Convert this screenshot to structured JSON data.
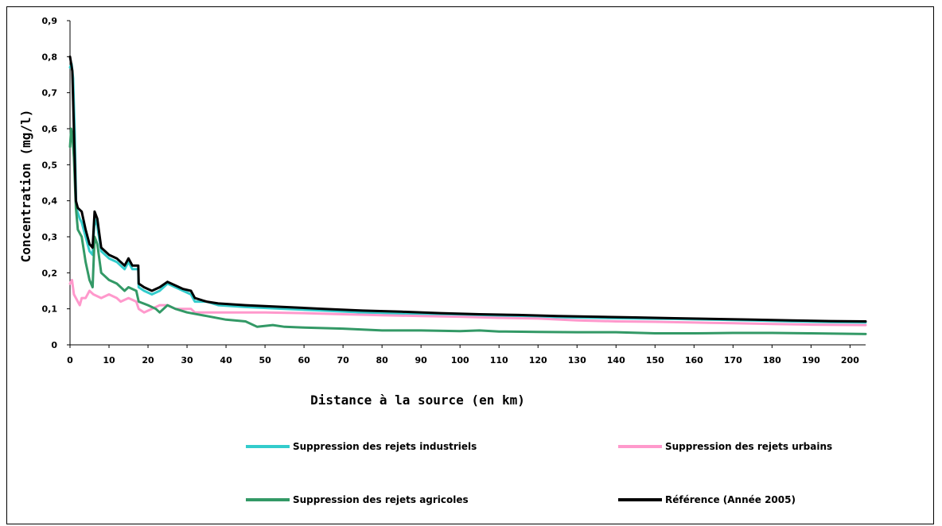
{
  "chart_data": {
    "type": "line",
    "title": "",
    "xlabel": "Distance à la source (en km)",
    "ylabel": "Concentration (mg/l)",
    "xlim": [
      0,
      204
    ],
    "ylim": [
      0,
      0.9
    ],
    "x_ticks": [
      0,
      10,
      20,
      30,
      40,
      50,
      60,
      70,
      80,
      90,
      100,
      110,
      120,
      130,
      140,
      150,
      160,
      170,
      180,
      190,
      200
    ],
    "x_tick_labels": [
      "0",
      "10",
      "20",
      "30",
      "40",
      "50",
      "60",
      "70",
      "80",
      "90",
      "100",
      "110",
      "120",
      "130",
      "140",
      "150",
      "160",
      "170",
      "180",
      "190",
      "200"
    ],
    "y_ticks": [
      0,
      0.1,
      0.2,
      0.3,
      0.4,
      0.5,
      0.6,
      0.7,
      0.8,
      0.9
    ],
    "y_tick_labels": [
      "0",
      "0,1",
      "0,2",
      "0,3",
      "0,4",
      "0,5",
      "0,6",
      "0,7",
      "0,8",
      "0,9"
    ],
    "grid": false,
    "legend_position": "bottom",
    "series": [
      {
        "name": "Suppression des rejets industriels",
        "color": "#33CCCC",
        "points": [
          [
            0,
            0.77
          ],
          [
            0.4,
            0.78
          ],
          [
            0.8,
            0.74
          ],
          [
            1.2,
            0.59
          ],
          [
            1.6,
            0.38
          ],
          [
            2.5,
            0.35
          ],
          [
            3,
            0.34
          ],
          [
            4,
            0.3
          ],
          [
            5,
            0.26
          ],
          [
            5.8,
            0.25
          ],
          [
            6.3,
            0.35
          ],
          [
            7,
            0.33
          ],
          [
            8,
            0.26
          ],
          [
            10,
            0.24
          ],
          [
            12,
            0.23
          ],
          [
            14,
            0.21
          ],
          [
            15,
            0.23
          ],
          [
            16,
            0.21
          ],
          [
            17.5,
            0.21
          ],
          [
            17.6,
            0.16
          ],
          [
            19,
            0.15
          ],
          [
            21,
            0.14
          ],
          [
            23,
            0.15
          ],
          [
            25,
            0.17
          ],
          [
            27,
            0.16
          ],
          [
            29,
            0.15
          ],
          [
            31,
            0.14
          ],
          [
            32,
            0.12
          ],
          [
            35,
            0.12
          ],
          [
            38,
            0.11
          ],
          [
            45,
            0.105
          ],
          [
            55,
            0.1
          ],
          [
            65,
            0.095
          ],
          [
            75,
            0.09
          ],
          [
            85,
            0.087
          ],
          [
            95,
            0.083
          ],
          [
            105,
            0.08
          ],
          [
            115,
            0.08
          ],
          [
            125,
            0.077
          ],
          [
            135,
            0.075
          ],
          [
            145,
            0.073
          ],
          [
            155,
            0.072
          ],
          [
            165,
            0.07
          ],
          [
            175,
            0.068
          ],
          [
            185,
            0.065
          ],
          [
            195,
            0.063
          ],
          [
            204,
            0.062
          ]
        ]
      },
      {
        "name": "Suppression des rejets urbains",
        "color": "#FF99CC",
        "points": [
          [
            0,
            0.17
          ],
          [
            0.5,
            0.18
          ],
          [
            1,
            0.14
          ],
          [
            2,
            0.12
          ],
          [
            2.5,
            0.11
          ],
          [
            3,
            0.13
          ],
          [
            4,
            0.13
          ],
          [
            5,
            0.15
          ],
          [
            6,
            0.14
          ],
          [
            8,
            0.13
          ],
          [
            10,
            0.14
          ],
          [
            12,
            0.13
          ],
          [
            13,
            0.12
          ],
          [
            15,
            0.13
          ],
          [
            17,
            0.12
          ],
          [
            17.6,
            0.1
          ],
          [
            19,
            0.09
          ],
          [
            21,
            0.1
          ],
          [
            23,
            0.11
          ],
          [
            25,
            0.11
          ],
          [
            27,
            0.1
          ],
          [
            31,
            0.1
          ],
          [
            32,
            0.09
          ],
          [
            45,
            0.09
          ],
          [
            50,
            0.09
          ],
          [
            60,
            0.088
          ],
          [
            70,
            0.085
          ],
          [
            80,
            0.082
          ],
          [
            90,
            0.08
          ],
          [
            100,
            0.078
          ],
          [
            110,
            0.075
          ],
          [
            120,
            0.073
          ],
          [
            130,
            0.068
          ],
          [
            140,
            0.065
          ],
          [
            150,
            0.064
          ],
          [
            160,
            0.062
          ],
          [
            170,
            0.06
          ],
          [
            180,
            0.058
          ],
          [
            190,
            0.056
          ],
          [
            204,
            0.055
          ]
        ]
      },
      {
        "name": "Suppression des rejets agricoles",
        "color": "#339966",
        "points": [
          [
            0,
            0.55
          ],
          [
            0.3,
            0.6
          ],
          [
            0.6,
            0.58
          ],
          [
            1,
            0.52
          ],
          [
            1.5,
            0.38
          ],
          [
            2,
            0.32
          ],
          [
            3,
            0.3
          ],
          [
            4,
            0.23
          ],
          [
            5,
            0.18
          ],
          [
            5.8,
            0.16
          ],
          [
            6.3,
            0.3
          ],
          [
            7,
            0.28
          ],
          [
            8,
            0.2
          ],
          [
            10,
            0.18
          ],
          [
            12,
            0.17
          ],
          [
            14,
            0.15
          ],
          [
            15,
            0.16
          ],
          [
            17,
            0.15
          ],
          [
            17.6,
            0.12
          ],
          [
            20,
            0.11
          ],
          [
            22,
            0.1
          ],
          [
            23,
            0.09
          ],
          [
            25,
            0.11
          ],
          [
            27,
            0.1
          ],
          [
            30,
            0.09
          ],
          [
            35,
            0.08
          ],
          [
            40,
            0.07
          ],
          [
            45,
            0.065
          ],
          [
            48,
            0.05
          ],
          [
            52,
            0.055
          ],
          [
            55,
            0.05
          ],
          [
            60,
            0.048
          ],
          [
            70,
            0.045
          ],
          [
            80,
            0.04
          ],
          [
            90,
            0.04
          ],
          [
            100,
            0.038
          ],
          [
            105,
            0.04
          ],
          [
            110,
            0.037
          ],
          [
            120,
            0.036
          ],
          [
            130,
            0.035
          ],
          [
            140,
            0.035
          ],
          [
            150,
            0.032
          ],
          [
            160,
            0.032
          ],
          [
            170,
            0.033
          ],
          [
            180,
            0.033
          ],
          [
            190,
            0.032
          ],
          [
            204,
            0.03
          ]
        ]
      },
      {
        "name": "Référence (Année 2005)",
        "color": "#000000",
        "points": [
          [
            0,
            0.8
          ],
          [
            0.3,
            0.78
          ],
          [
            0.6,
            0.76
          ],
          [
            1,
            0.6
          ],
          [
            1.5,
            0.4
          ],
          [
            2,
            0.38
          ],
          [
            3,
            0.37
          ],
          [
            4,
            0.32
          ],
          [
            5,
            0.28
          ],
          [
            5.8,
            0.27
          ],
          [
            6.3,
            0.37
          ],
          [
            7,
            0.35
          ],
          [
            8,
            0.27
          ],
          [
            10,
            0.25
          ],
          [
            12,
            0.24
          ],
          [
            14,
            0.22
          ],
          [
            15,
            0.24
          ],
          [
            16,
            0.22
          ],
          [
            17.5,
            0.22
          ],
          [
            17.6,
            0.17
          ],
          [
            19,
            0.16
          ],
          [
            21,
            0.15
          ],
          [
            23,
            0.16
          ],
          [
            25,
            0.175
          ],
          [
            27,
            0.165
          ],
          [
            29,
            0.155
          ],
          [
            31,
            0.15
          ],
          [
            32,
            0.13
          ],
          [
            35,
            0.12
          ],
          [
            38,
            0.115
          ],
          [
            45,
            0.11
          ],
          [
            55,
            0.105
          ],
          [
            65,
            0.1
          ],
          [
            75,
            0.095
          ],
          [
            85,
            0.092
          ],
          [
            95,
            0.088
          ],
          [
            105,
            0.085
          ],
          [
            115,
            0.083
          ],
          [
            125,
            0.08
          ],
          [
            135,
            0.078
          ],
          [
            145,
            0.076
          ],
          [
            155,
            0.074
          ],
          [
            165,
            0.072
          ],
          [
            175,
            0.07
          ],
          [
            185,
            0.068
          ],
          [
            195,
            0.066
          ],
          [
            204,
            0.065
          ]
        ]
      }
    ]
  }
}
